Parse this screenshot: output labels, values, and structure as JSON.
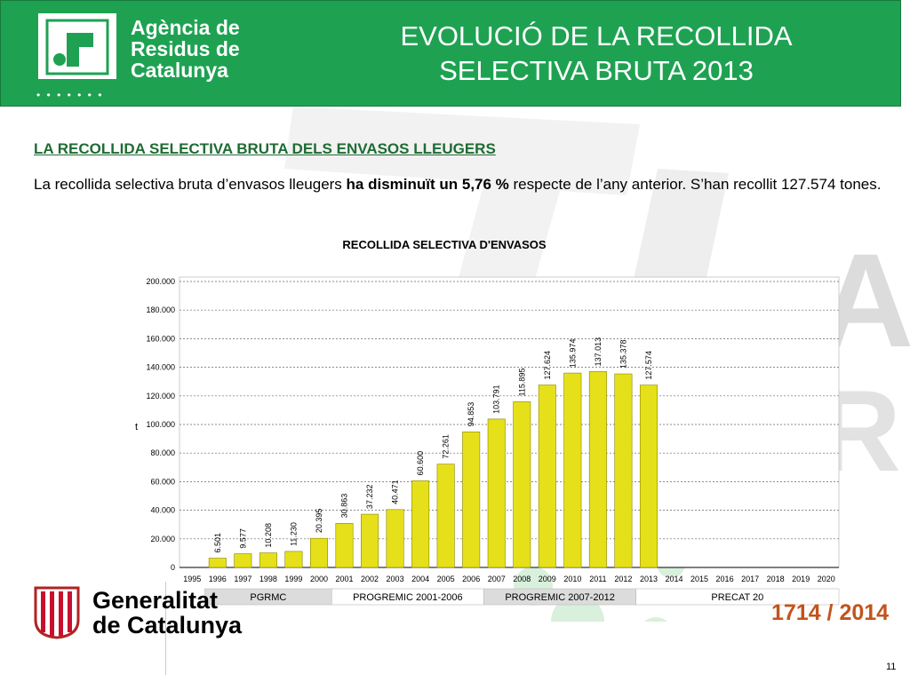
{
  "header": {
    "agency_line1": "Agència de",
    "agency_line2": "Residus de",
    "agency_line3": "Catalunya",
    "logo_dots": "• • • • • • •",
    "title_line1": "EVOLUCIÓ DE LA RECOLLIDA",
    "title_line2": "SELECTIVA BRUTA 2013"
  },
  "subtitle": "LA RECOLLIDA SELECTIVA BRUTA DELS ENVASOS LLEUGERS",
  "body": {
    "part1": "La recollida selectiva bruta d’envasos lleugers ",
    "bold": "ha disminuït un 5,76 %",
    "part2": " respecte de l’any anterior. S’han recollit 127.574 tones."
  },
  "chart_data": {
    "type": "bar",
    "title": "RECOLLIDA SELECTIVA D'ENVASOS",
    "ylabel": "t",
    "ylim": [
      0,
      200000
    ],
    "yticks": [
      "0",
      "20.000",
      "40.000",
      "60.000",
      "80.000",
      "100.000",
      "120.000",
      "140.000",
      "160.000",
      "180.000",
      "200.000"
    ],
    "categories": [
      "1995",
      "1996",
      "1997",
      "1998",
      "1999",
      "2000",
      "2001",
      "2002",
      "2003",
      "2004",
      "2005",
      "2006",
      "2007",
      "2008",
      "2009",
      "2010",
      "2011",
      "2012",
      "2013",
      "2014",
      "2015",
      "2016",
      "2017",
      "2018",
      "2019",
      "2020"
    ],
    "values": [
      null,
      6501,
      9577,
      10208,
      11230,
      20395,
      30863,
      37232,
      40471,
      60600,
      72261,
      94853,
      103791,
      115895,
      127624,
      135974,
      137013,
      135378,
      127574,
      null,
      null,
      null,
      null,
      null,
      null,
      null
    ],
    "labels": [
      "",
      "6.501",
      "9.577",
      "10.208",
      "11.230",
      "20.395",
      "30.863",
      "37.232",
      "40.471",
      "60.600",
      "72.261",
      "94.853",
      "103.791",
      "115.895",
      "127.624",
      "135.974",
      "137.013",
      "135.378",
      "127.574",
      "",
      "",
      "",
      "",
      "",
      "",
      ""
    ],
    "bar_color": "#e6e01a",
    "grid": true,
    "programs": [
      {
        "label": "PGRMC",
        "from": "1996",
        "to": "2000"
      },
      {
        "label": "PROGREMIC 2001-2006",
        "from": "2001",
        "to": "2006"
      },
      {
        "label": "PROGREMIC 2007-2012",
        "from": "2007",
        "to": "2012"
      },
      {
        "label": "PRECAT 20",
        "from": "2013",
        "to": "2020"
      }
    ]
  },
  "footer": {
    "gen_line1": "Generalitat",
    "gen_line2": "de Catalunya",
    "anniversary": "1714 / 2014",
    "page": "11"
  },
  "colors": {
    "header_green": "#1ea252",
    "subtitle_green": "#1f6b34",
    "bar": "#e6e01a",
    "anniversary": "#c2541c"
  }
}
